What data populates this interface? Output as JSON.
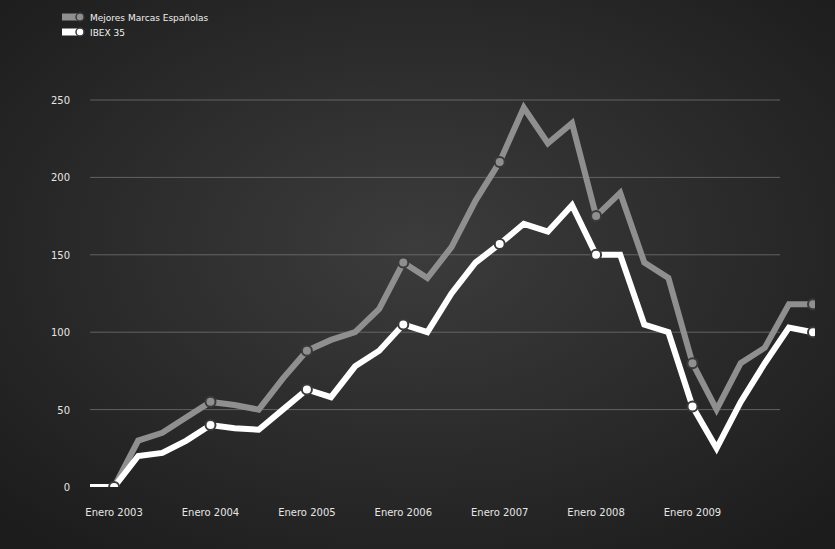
{
  "chart_data": {
    "type": "line",
    "categories": [
      null,
      "Enero 2003",
      null,
      null,
      null,
      "Enero 2004",
      null,
      null,
      null,
      "Enero 2005",
      null,
      null,
      null,
      "Enero 2006",
      null,
      null,
      null,
      "Enero 2007",
      null,
      null,
      null,
      "Enero 2008",
      null,
      null,
      null,
      "Enero 2009",
      null,
      null,
      null,
      null,
      null
    ],
    "series": [
      {
        "name": "Mejores Marcas Españolas",
        "color": "#8f8f8f",
        "marker": "circle",
        "values": [
          0,
          0,
          30,
          35,
          45,
          55,
          53,
          50,
          70,
          88,
          95,
          100,
          115,
          145,
          135,
          155,
          185,
          210,
          245,
          222,
          235,
          175,
          190,
          145,
          135,
          80,
          50,
          80,
          90,
          118,
          118
        ]
      },
      {
        "name": "IBEX 35",
        "color": "#ffffff",
        "marker": "circle",
        "values": [
          0,
          0,
          20,
          22,
          30,
          40,
          38,
          37,
          50,
          63,
          58,
          78,
          88,
          105,
          100,
          125,
          145,
          157,
          170,
          165,
          182,
          150,
          150,
          105,
          100,
          52,
          25,
          55,
          80,
          103,
          100
        ]
      }
    ],
    "ylim": [
      0,
      250
    ],
    "yticks": [
      0,
      50,
      100,
      150,
      200,
      250
    ],
    "grid": true,
    "legend": "top-left"
  }
}
